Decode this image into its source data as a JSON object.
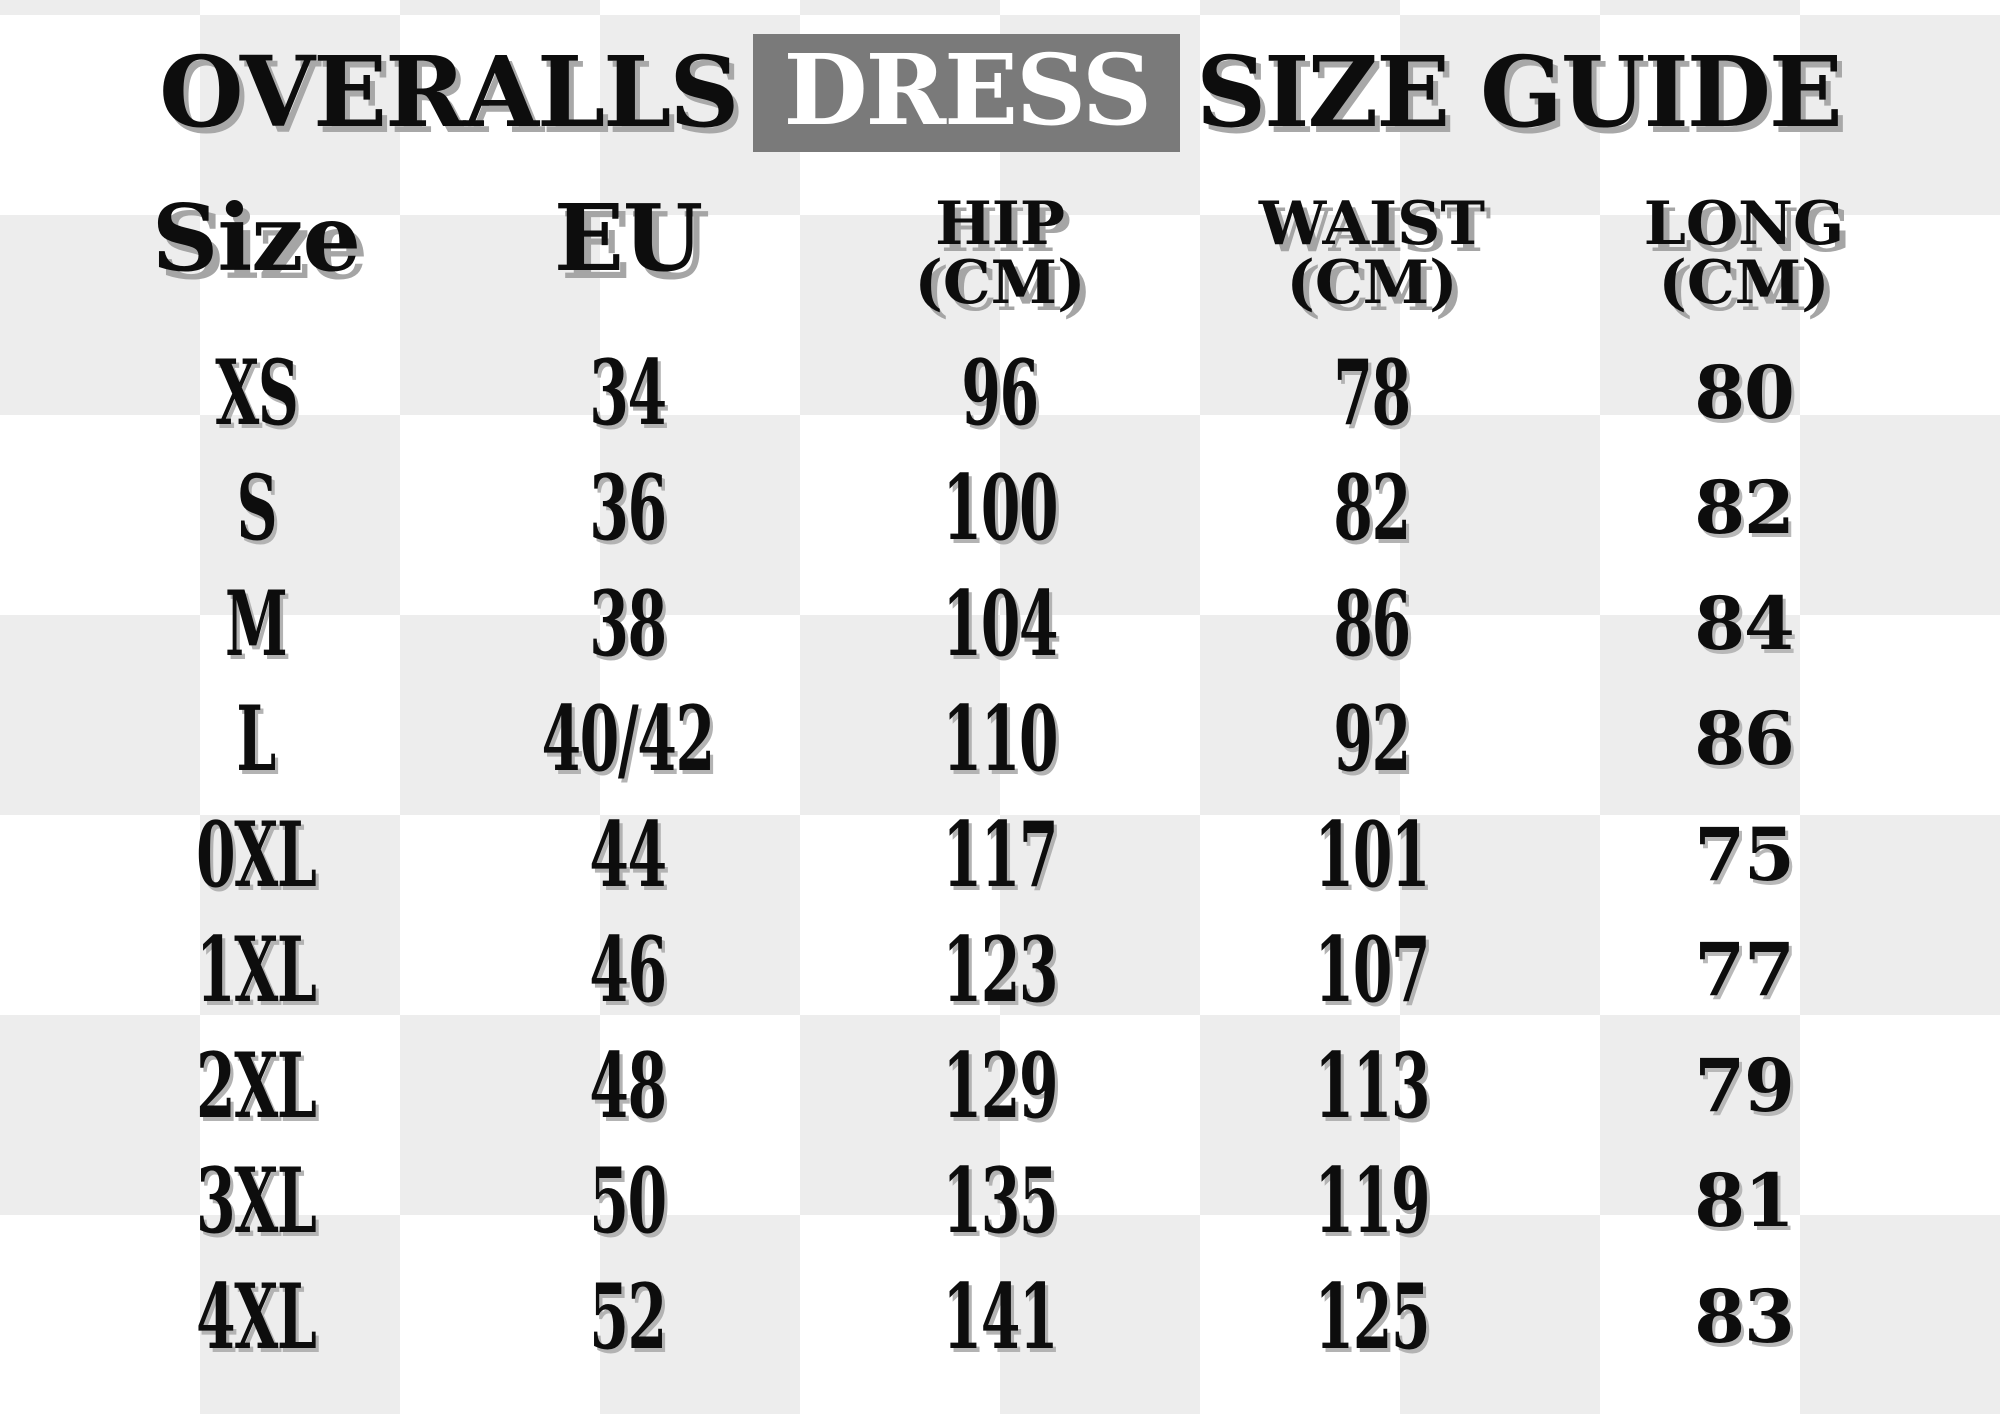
{
  "title": {
    "leading": "OVERALLS",
    "highlighted": "DRESS",
    "trailing": "SIZE GUIDE"
  },
  "table": {
    "columns": [
      {
        "label": "Size",
        "sub": ""
      },
      {
        "label": "EU",
        "sub": ""
      },
      {
        "label": "HIP",
        "sub": "(CM)"
      },
      {
        "label": "WAIST",
        "sub": "(CM)"
      },
      {
        "label": "LONG",
        "sub": "(CM)"
      }
    ],
    "rows": [
      {
        "size": "XS",
        "eu": "34",
        "hip": "96",
        "waist": "78",
        "long": "80"
      },
      {
        "size": "S",
        "eu": "36",
        "hip": "100",
        "waist": "82",
        "long": "82"
      },
      {
        "size": "M",
        "eu": "38",
        "hip": "104",
        "waist": "86",
        "long": "84"
      },
      {
        "size": "L",
        "eu": "40/42",
        "hip": "110",
        "waist": "92",
        "long": "86"
      },
      {
        "size": "0XL",
        "eu": "44",
        "hip": "117",
        "waist": "101",
        "long": "75"
      },
      {
        "size": "1XL",
        "eu": "46",
        "hip": "123",
        "waist": "107",
        "long": "77"
      },
      {
        "size": "2XL",
        "eu": "48",
        "hip": "129",
        "waist": "113",
        "long": "79"
      },
      {
        "size": "3XL",
        "eu": "50",
        "hip": "135",
        "waist": "119",
        "long": "81"
      },
      {
        "size": "4XL",
        "eu": "52",
        "hip": "141",
        "waist": "125",
        "long": "83"
      }
    ]
  },
  "colors": {
    "checker_gray": "#ededed",
    "checker_white": "#ffffff",
    "highlight_bg": "#7a7a7a",
    "highlight_text": "#ffffff",
    "text": "#0d0d0d",
    "shadow_gray": "#a5a5a5"
  }
}
